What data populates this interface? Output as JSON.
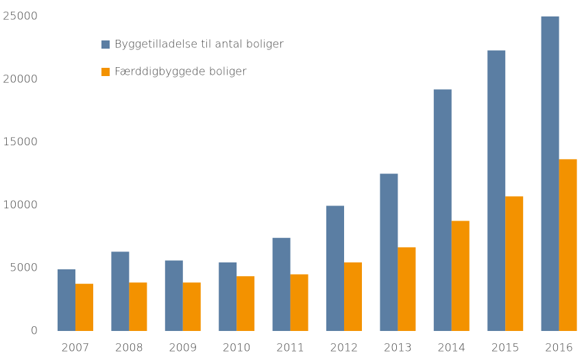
{
  "chart_data": {
    "type": "bar",
    "categories": [
      "2007",
      "2008",
      "2009",
      "2010",
      "2011",
      "2012",
      "2013",
      "2014",
      "2015",
      "2016"
    ],
    "series": [
      {
        "name": "Byggetilladelse til antal boliger",
        "color": "#5b7ea3",
        "values": [
          4900,
          6300,
          5600,
          5450,
          7400,
          9950,
          12500,
          19200,
          22300,
          25000
        ]
      },
      {
        "name": "Færddigbyggede boliger",
        "color": "#f39200",
        "values": [
          3750,
          3850,
          3850,
          4350,
          4500,
          5450,
          6650,
          8750,
          10700,
          13650
        ]
      }
    ],
    "ylim": [
      0,
      25000
    ],
    "yticks": [
      0,
      5000,
      10000,
      15000,
      20000,
      25000
    ],
    "grid": false,
    "legend": "top-left"
  }
}
